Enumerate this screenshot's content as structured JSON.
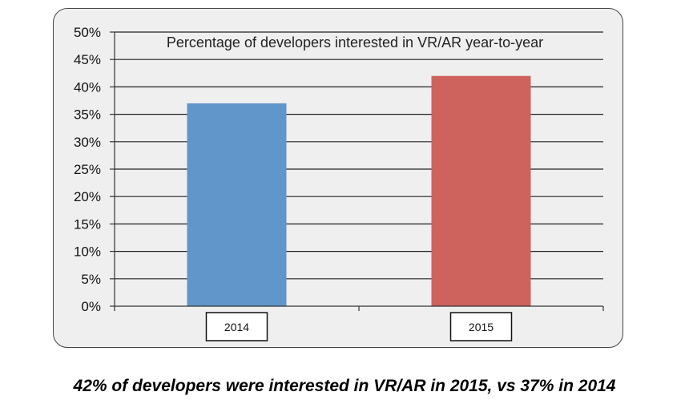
{
  "chart_data": {
    "type": "bar",
    "title": "Percentage of developers interested in VR/AR year-to-year",
    "categories": [
      "2014",
      "2015"
    ],
    "values": [
      37,
      42
    ],
    "colors": [
      "#6096c9",
      "#cd635c"
    ],
    "ylim": [
      0,
      50
    ],
    "yticks": [
      "0%",
      "5%",
      "10%",
      "15%",
      "20%",
      "25%",
      "30%",
      "35%",
      "40%",
      "45%",
      "50%"
    ],
    "xlabel": "",
    "ylabel": "",
    "grid": true
  },
  "caption": "42% of developers were interested in VR/AR in 2015, vs 37% in 2014"
}
